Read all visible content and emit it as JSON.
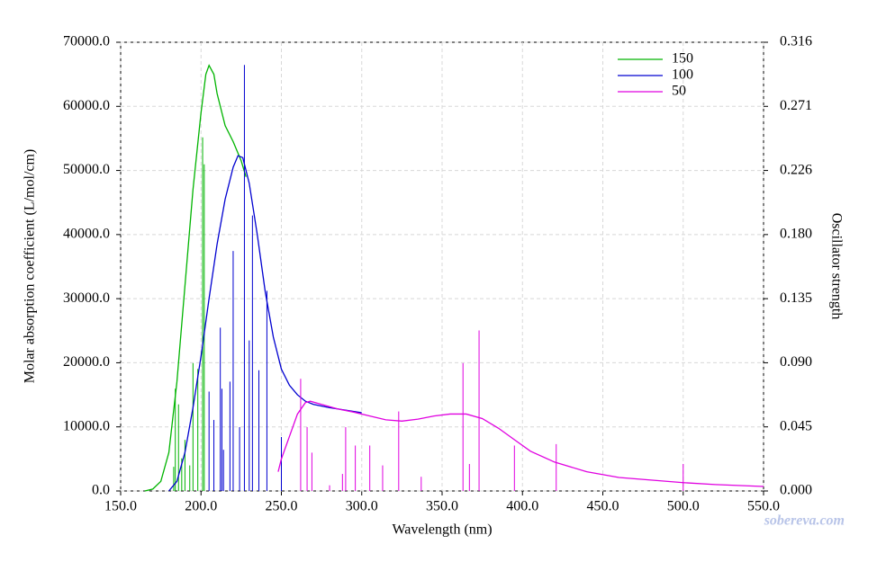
{
  "chart_data": {
    "type": "line",
    "xlabel": "Wavelength (nm)",
    "ylabel": "Molar absorption coefficient (L/mol/cm)",
    "y2label": "Oscillator strength",
    "watermark": "sobereva.com",
    "grid": true,
    "legend": "upper right",
    "xlim": [
      150,
      550
    ],
    "xticks": [
      {
        "value": 150,
        "label": "150.0"
      },
      {
        "value": 200,
        "label": "200.0"
      },
      {
        "value": 250,
        "label": "250.0"
      },
      {
        "value": 300,
        "label": "300.0"
      },
      {
        "value": 350,
        "label": "350.0"
      },
      {
        "value": 400,
        "label": "400.0"
      },
      {
        "value": 450,
        "label": "450.0"
      },
      {
        "value": 500,
        "label": "500.0"
      },
      {
        "value": 550,
        "label": "550.0"
      }
    ],
    "ylim": [
      0,
      70000
    ],
    "yticks": [
      {
        "value": 0,
        "label": "0.0"
      },
      {
        "value": 10000,
        "label": "10000.0"
      },
      {
        "value": 20000,
        "label": "20000.0"
      },
      {
        "value": 30000,
        "label": "30000.0"
      },
      {
        "value": 40000,
        "label": "40000.0"
      },
      {
        "value": 50000,
        "label": "50000.0"
      },
      {
        "value": 60000,
        "label": "60000.0"
      },
      {
        "value": 70000,
        "label": "70000.0"
      }
    ],
    "y2lim": [
      0,
      0.316
    ],
    "y2ticks": [
      {
        "value": 0,
        "label": "0.000"
      },
      {
        "value": 0.04514,
        "label": "0.045"
      },
      {
        "value": 0.09029,
        "label": "0.090"
      },
      {
        "value": 0.13543,
        "label": "0.135"
      },
      {
        "value": 0.18057,
        "label": "0.180"
      },
      {
        "value": 0.22571,
        "label": "0.226"
      },
      {
        "value": 0.27086,
        "label": "0.271"
      },
      {
        "value": 0.316,
        "label": "0.316"
      }
    ],
    "series": [
      {
        "name": "150",
        "color": "#00b400",
        "x": [
          165,
          170,
          175,
          180,
          185,
          190,
          195,
          200,
          203,
          205,
          208,
          210,
          215,
          220,
          225,
          228
        ],
        "values": [
          0,
          300,
          1500,
          6000,
          17000,
          32000,
          47000,
          59000,
          65000,
          66400,
          65000,
          62000,
          57000,
          54500,
          51500,
          49000
        ],
        "sticks": {
          "axis": "y2",
          "x": [
            183,
            184,
            186,
            188,
            190,
            193,
            195,
            198,
            201,
            202
          ],
          "values": [
            0.017,
            0.072,
            0.061,
            0.023,
            0.036,
            0.018,
            0.09,
            0.086,
            0.249,
            0.23
          ]
        }
      },
      {
        "name": "100",
        "color": "#0000d0",
        "x": [
          180,
          185,
          190,
          195,
          200,
          205,
          210,
          215,
          220,
          223,
          226,
          230,
          235,
          240,
          245,
          250,
          255,
          260,
          265,
          270,
          280,
          290,
          300
        ],
        "values": [
          0,
          1500,
          6000,
          13000,
          21000,
          30000,
          38500,
          45500,
          50500,
          52300,
          52000,
          48000,
          40000,
          31000,
          24000,
          19000,
          16500,
          15000,
          14000,
          13500,
          13000,
          12600,
          12200
        ],
        "sticks": {
          "axis": "y2",
          "x": [
            205,
            208,
            212,
            213,
            214,
            218,
            220,
            224,
            227,
            230,
            232,
            236,
            241,
            250
          ],
          "values": [
            0.07,
            0.05,
            0.115,
            0.072,
            0.029,
            0.077,
            0.169,
            0.045,
            0.3,
            0.106,
            0.194,
            0.085,
            0.141,
            0.038
          ]
        }
      },
      {
        "name": "50",
        "color": "#e000e0",
        "x": [
          248,
          250,
          255,
          260,
          265,
          268,
          275,
          285,
          295,
          305,
          315,
          325,
          335,
          345,
          355,
          365,
          375,
          385,
          395,
          405,
          420,
          440,
          460,
          480,
          500,
          520,
          550
        ],
        "values": [
          3000,
          5000,
          8500,
          12000,
          13800,
          14000,
          13500,
          12800,
          12300,
          11700,
          11100,
          10900,
          11200,
          11700,
          12000,
          12000,
          11300,
          9800,
          8000,
          6200,
          4500,
          3000,
          2100,
          1700,
          1300,
          1000,
          700
        ],
        "sticks": {
          "axis": "y2",
          "x": [
            262,
            266,
            269,
            280,
            288,
            290,
            296,
            305,
            313,
            323,
            337,
            363,
            367,
            373,
            395,
            421,
            500
          ],
          "values": [
            0.079,
            0.045,
            0.027,
            0.004,
            0.012,
            0.045,
            0.032,
            0.032,
            0.018,
            0.056,
            0.01,
            0.09,
            0.019,
            0.113,
            0.032,
            0.033,
            0.019
          ]
        }
      }
    ]
  }
}
